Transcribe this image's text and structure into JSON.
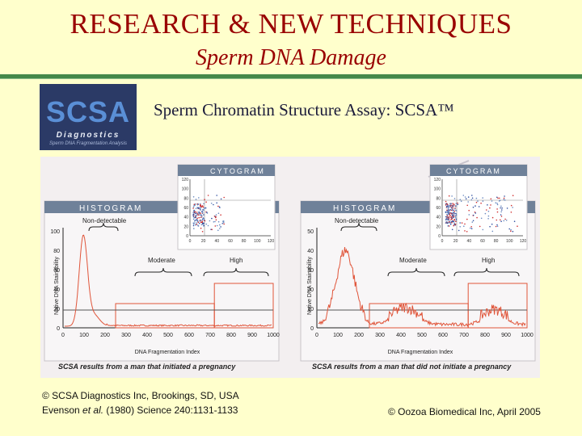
{
  "slide": {
    "title": "RESEARCH & NEW TECHNIQUES",
    "subtitle": "Sperm DNA Damage",
    "heading": "Sperm Chromatin Structure Assay: SCSA™"
  },
  "logo": {
    "name": "SCSA",
    "tagline": "Diagnostics",
    "small_text": "Sperm DNA Fragmentation Analysis"
  },
  "panels": [
    {
      "histogram_label": "HISTOGRAM",
      "cytogram_label": "CYTOGRAM",
      "non_detectable_label": "Non-detectable",
      "moderate_label": "Moderate",
      "high_label": "High",
      "ylabel": "Native DNA Stainability",
      "xlabel": "DNA Fragmentation Index",
      "caption": "SCSA results from a man that initiated a pregnancy",
      "y_ticks": [
        "0",
        "20",
        "40",
        "60",
        "80",
        "100"
      ],
      "x_ticks": [
        "0",
        "100",
        "200",
        "300",
        "400",
        "500",
        "600",
        "700",
        "800",
        "900",
        "1000"
      ],
      "cyto_y_ticks": [
        "120",
        "100",
        "80",
        "60",
        "40",
        "20",
        "0"
      ],
      "cyto_x_ticks": [
        "0",
        "20",
        "40",
        "60",
        "80",
        "100",
        "120"
      ]
    },
    {
      "histogram_label": "HISTOGRAM",
      "cytogram_label": "CYTOGRAM",
      "non_detectable_label": "Non-detectable",
      "moderate_label": "Moderate",
      "high_label": "High",
      "ylabel": "Native DNA Stainability",
      "xlabel": "DNA Fragmentation Index",
      "caption": "SCSA results from a man that did not initiate a pregnancy",
      "y_ticks": [
        "0",
        "10",
        "20",
        "30",
        "40",
        "50"
      ],
      "x_ticks": [
        "0",
        "100",
        "200",
        "300",
        "400",
        "500",
        "600",
        "700",
        "800",
        "900",
        "1000"
      ],
      "cyto_y_ticks": [
        "120",
        "100",
        "80",
        "60",
        "40",
        "20",
        "0"
      ],
      "cyto_x_ticks": [
        "0",
        "20",
        "40",
        "60",
        "80",
        "100",
        "120"
      ]
    }
  ],
  "credits": {
    "line1": "© SCSA Diagnostics Inc, Brookings, SD, USA",
    "line2_author": "Evenson",
    "line2_etal": "et al.",
    "line2_rest": "(1980) Science 240:1131-1133",
    "right": "© Oozoa Biomedical Inc, April 2005"
  },
  "colors": {
    "title": "#990000",
    "rule": "#44884a",
    "histogram": "#e0553a",
    "panel_header": "#6f8199"
  }
}
